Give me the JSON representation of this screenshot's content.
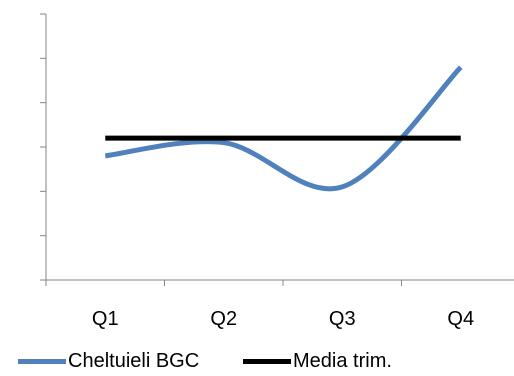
{
  "chart_data": {
    "type": "line",
    "categories": [
      "Q1",
      "Q2",
      "Q3",
      "Q4"
    ],
    "series": [
      {
        "name": "Cheltuieli BGC",
        "values": [
          2.8,
          3.1,
          2.1,
          4.8
        ],
        "color": "#4F81BD",
        "smooth": true
      },
      {
        "name": "Media trim.",
        "values": [
          3.2,
          3.2,
          3.2,
          3.2
        ],
        "color": "#000000",
        "smooth": false
      }
    ],
    "ylim": [
      0,
      6
    ],
    "y_tick_labels": "none",
    "grid": false,
    "legend_position": "bottom",
    "title": "",
    "xlabel": "",
    "ylabel": ""
  },
  "legend": {
    "items": [
      {
        "label": "Cheltuieli BGC"
      },
      {
        "label": "Media trim."
      }
    ]
  }
}
